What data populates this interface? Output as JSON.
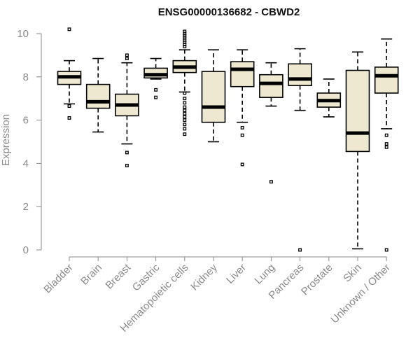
{
  "chart_data": {
    "type": "boxplot",
    "title": "ENSG00000136682 - CBWD2",
    "xlabel": "",
    "ylabel": "Expression",
    "ylim": [
      0,
      10
    ],
    "yticks": [
      "0",
      "2",
      "4",
      "6",
      "8",
      "10"
    ],
    "box_fill": "#eee8d0",
    "stroke": "#000000",
    "categories": [
      "Bladder",
      "Brain",
      "Breast",
      "Gastric",
      "Hematopoietic cells",
      "Kidney",
      "Liver",
      "Lung",
      "Pancreas",
      "Prostate",
      "Skin",
      "Unknown / Other"
    ],
    "series": [
      {
        "q1": 7.65,
        "median": 8.0,
        "q3": 8.25,
        "whisker_low": 6.75,
        "whisker_high": 8.75,
        "outliers": [
          10.2,
          6.65,
          6.1
        ]
      },
      {
        "q1": 6.55,
        "median": 6.85,
        "q3": 7.65,
        "whisker_low": 5.45,
        "whisker_high": 8.85,
        "outliers": []
      },
      {
        "q1": 6.2,
        "median": 6.7,
        "q3": 7.2,
        "whisker_low": 4.9,
        "whisker_high": 8.65,
        "outliers": [
          9.0,
          8.85,
          4.5,
          3.9
        ]
      },
      {
        "q1": 7.95,
        "median": 8.1,
        "q3": 8.4,
        "whisker_low": 7.9,
        "whisker_high": 8.85,
        "outliers": [
          7.4,
          7.05
        ]
      },
      {
        "q1": 8.2,
        "median": 8.45,
        "q3": 8.75,
        "whisker_low": 7.3,
        "whisker_high": 9.25,
        "outliers": [
          10.1,
          10.0,
          9.9,
          9.8,
          9.7,
          9.6,
          9.5,
          9.4,
          7.25,
          7.0,
          6.8,
          6.6,
          6.45,
          6.3,
          6.15,
          6.0,
          5.8,
          5.6,
          5.35
        ]
      },
      {
        "q1": 5.9,
        "median": 6.6,
        "q3": 8.25,
        "whisker_low": 5.0,
        "whisker_high": 9.25,
        "outliers": []
      },
      {
        "q1": 7.55,
        "median": 8.35,
        "q3": 8.7,
        "whisker_low": 5.9,
        "whisker_high": 9.25,
        "outliers": [
          5.65,
          5.3,
          3.95
        ]
      },
      {
        "q1": 7.05,
        "median": 7.7,
        "q3": 8.1,
        "whisker_low": 6.65,
        "whisker_high": 8.65,
        "outliers": [
          3.15
        ]
      },
      {
        "q1": 7.6,
        "median": 7.9,
        "q3": 8.6,
        "whisker_low": 6.45,
        "whisker_high": 9.3,
        "outliers": [
          0.0
        ]
      },
      {
        "q1": 6.6,
        "median": 6.9,
        "q3": 7.25,
        "whisker_low": 6.15,
        "whisker_high": 7.9,
        "outliers": []
      },
      {
        "q1": 4.55,
        "median": 5.4,
        "q3": 8.3,
        "whisker_low": 0.05,
        "whisker_high": 9.15,
        "outliers": []
      },
      {
        "q1": 7.25,
        "median": 8.05,
        "q3": 8.45,
        "whisker_low": 5.6,
        "whisker_high": 9.75,
        "outliers": [
          5.3,
          4.9,
          4.75,
          0.0
        ]
      }
    ]
  }
}
